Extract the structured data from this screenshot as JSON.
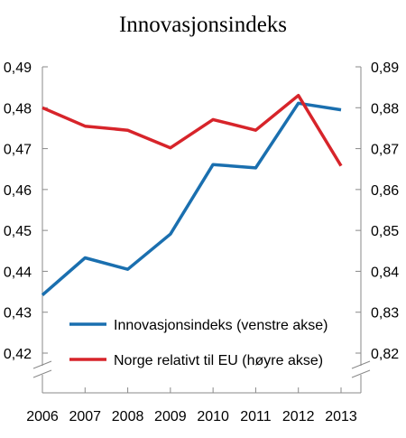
{
  "chart_data": {
    "type": "line",
    "title": "Innovasjonsindeks",
    "x": [
      "2006",
      "2007",
      "2008",
      "2009",
      "2010",
      "2011",
      "2012",
      "2013"
    ],
    "y_left": {
      "ylim": [
        0.42,
        0.49
      ],
      "ticks": [
        "0,42",
        "0,43",
        "0,44",
        "0,45",
        "0,46",
        "0,47",
        "0,48",
        "0,49"
      ]
    },
    "y_right": {
      "ylim": [
        0.82,
        0.89
      ],
      "ticks": [
        "0,82",
        "0,83",
        "0,84",
        "0,85",
        "0,86",
        "0,87",
        "0,88",
        "0,89"
      ]
    },
    "series": [
      {
        "name": "Innovasjonsindeks (venstre akse)",
        "axis": "left",
        "color": "#1a6faf",
        "values": [
          0.4342,
          0.4433,
          0.4405,
          0.4491,
          0.4661,
          0.4653,
          0.4811,
          0.4795
        ]
      },
      {
        "name": "Norge relativt til EU (høyre akse)",
        "axis": "right",
        "color": "#d7242a",
        "values": [
          0.88,
          0.8755,
          0.8745,
          0.8702,
          0.8771,
          0.8745,
          0.883,
          0.8658
        ]
      }
    ],
    "grid": false,
    "legend_position": "bottom-right"
  }
}
